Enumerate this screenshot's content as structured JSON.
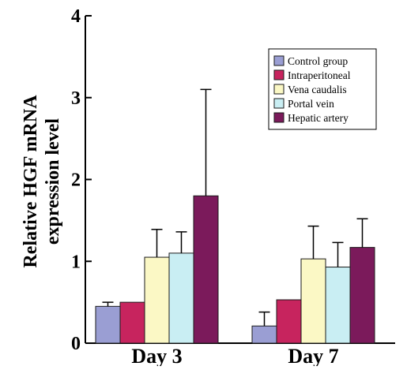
{
  "chart_data": {
    "type": "bar",
    "categories": [
      "Day 3",
      "Day 7"
    ],
    "series": [
      {
        "name": "Control group",
        "values": [
          0.45,
          0.21
        ],
        "errors": [
          0.05,
          0.17
        ],
        "color": "#9a9ed3"
      },
      {
        "name": "Intraperitoneal",
        "values": [
          0.5,
          0.53
        ],
        "errors": [
          0.0,
          0.0
        ],
        "color": "#c7245e"
      },
      {
        "name": "Vena caudalis",
        "values": [
          1.05,
          1.03
        ],
        "errors": [
          0.34,
          0.4
        ],
        "color": "#fbf8c5"
      },
      {
        "name": "Portal vein",
        "values": [
          1.1,
          0.93
        ],
        "errors": [
          0.26,
          0.3
        ],
        "color": "#c9eef3"
      },
      {
        "name": "Hepatic artery",
        "values": [
          1.8,
          1.17
        ],
        "errors": [
          1.3,
          0.35
        ],
        "color": "#7b1a5b"
      }
    ],
    "ylabel_lines": [
      "Relative HGF mRNA",
      "expression level"
    ],
    "xlabel": "",
    "title": "",
    "ylim": [
      0,
      4
    ],
    "yticks": [
      "0",
      "1",
      "2",
      "3",
      "4"
    ],
    "legend_position": "top-right",
    "grid": false
  }
}
